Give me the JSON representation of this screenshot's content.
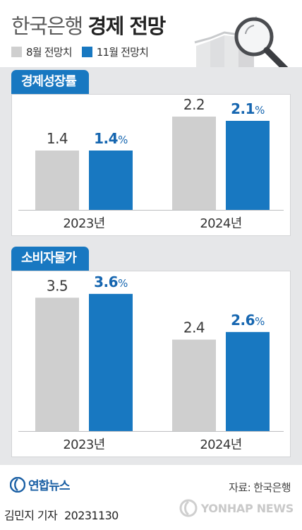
{
  "header": {
    "title_bank": "한국은행",
    "title_topic": "경제 전망",
    "legend": [
      {
        "label": "8월 전망치",
        "color": "#cfcfcf"
      },
      {
        "label": "11월 전망치",
        "color": "#1878c1"
      }
    ]
  },
  "chart_data": [
    {
      "type": "bar",
      "title": "경제성장률",
      "categories": [
        "2023년",
        "2024년"
      ],
      "series": [
        {
          "name": "8월 전망치",
          "values": [
            1.4,
            2.2
          ],
          "labels": [
            "1.4",
            "2.2"
          ]
        },
        {
          "name": "11월 전망치",
          "values": [
            1.4,
            2.1
          ],
          "labels": [
            "1.4%",
            "2.1%"
          ]
        }
      ],
      "ylim": [
        0,
        2.5
      ],
      "colors": [
        "#cfcfcf",
        "#1878c1"
      ]
    },
    {
      "type": "bar",
      "title": "소비자물가",
      "categories": [
        "2023년",
        "2024년"
      ],
      "series": [
        {
          "name": "8월 전망치",
          "values": [
            3.5,
            2.4
          ],
          "labels": [
            "3.5",
            "2.4"
          ]
        },
        {
          "name": "11월 전망치",
          "values": [
            3.6,
            2.6
          ],
          "labels": [
            "3.6%",
            "2.6%"
          ]
        }
      ],
      "ylim": [
        0,
        3.95
      ],
      "colors": [
        "#cfcfcf",
        "#1878c1"
      ]
    }
  ],
  "footer": {
    "brand": "연합뉴스",
    "source": "자료: 한국은행",
    "author": "김민지 기자",
    "date": "20231130",
    "watermark": "YONHAP NEWS"
  }
}
